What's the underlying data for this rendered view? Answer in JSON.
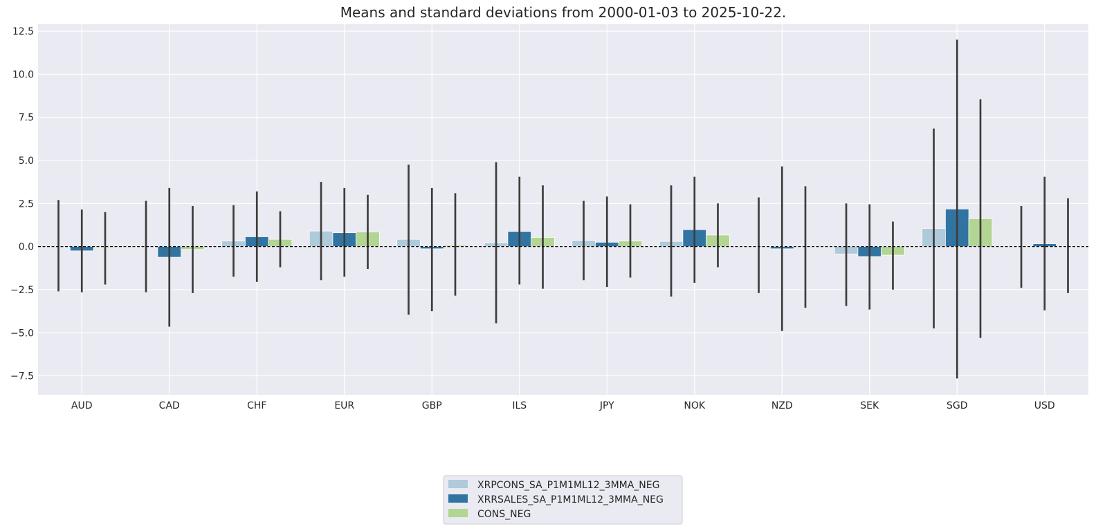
{
  "chart_data": {
    "type": "bar",
    "title": "Means and standard deviations from 2000-01-03 to 2025-10-22.",
    "xlabel": "",
    "ylabel": "",
    "ylim": [
      -8.6,
      12.9
    ],
    "yticks": [
      -7.5,
      -5.0,
      -2.5,
      0.0,
      2.5,
      5.0,
      7.5,
      10.0,
      12.5
    ],
    "ytick_labels": [
      "−7.5",
      "−5.0",
      "−2.5",
      "0.0",
      "2.5",
      "5.0",
      "7.5",
      "10.0",
      "12.5"
    ],
    "grid": true,
    "zero_line": "dashed",
    "legend_position": "bottom-center",
    "categories": [
      "AUD",
      "CAD",
      "CHF",
      "EUR",
      "GBP",
      "ILS",
      "JPY",
      "NOK",
      "NZD",
      "SEK",
      "SGD",
      "USD"
    ],
    "series": [
      {
        "name": "XRPCONS_SA_P1M1ML12_3MMA_NEG",
        "color": "#aecadb",
        "values": [
          0.02,
          0.0,
          0.32,
          0.9,
          0.42,
          0.22,
          0.36,
          0.3,
          0.05,
          -0.43,
          1.05,
          0.0
        ],
        "err_low": [
          -2.6,
          -2.65,
          -1.75,
          -1.95,
          -3.95,
          -4.45,
          -1.95,
          -2.9,
          -2.7,
          -3.45,
          -4.75,
          -2.4
        ],
        "err_high": [
          2.7,
          2.65,
          2.4,
          3.75,
          4.75,
          4.9,
          2.65,
          3.55,
          2.85,
          2.5,
          6.85,
          2.35
        ]
      },
      {
        "name": "XRRSALES_SA_P1M1ML12_3MMA_NEG",
        "color": "#3274a1",
        "values": [
          -0.25,
          -0.62,
          0.57,
          0.8,
          -0.13,
          0.88,
          0.25,
          0.98,
          -0.13,
          -0.58,
          2.18,
          0.16
        ],
        "err_low": [
          -2.65,
          -4.65,
          -2.05,
          -1.75,
          -3.75,
          -2.2,
          -2.35,
          -2.1,
          -4.9,
          -3.65,
          -7.65,
          -3.7
        ],
        "err_high": [
          2.15,
          3.4,
          3.2,
          3.4,
          3.4,
          4.05,
          2.9,
          4.05,
          4.65,
          2.45,
          12.0,
          4.05
        ]
      },
      {
        "name": "CONS_NEG",
        "color": "#b2d593",
        "values": [
          -0.05,
          -0.17,
          0.42,
          0.85,
          0.08,
          0.53,
          0.32,
          0.67,
          0.0,
          -0.5,
          1.62,
          0.0
        ],
        "err_low": [
          -2.2,
          -2.7,
          -1.2,
          -1.3,
          -2.85,
          -2.45,
          -1.8,
          -1.2,
          -3.55,
          -2.5,
          -5.3,
          -2.7
        ],
        "err_high": [
          2.0,
          2.35,
          2.05,
          3.0,
          3.1,
          3.55,
          2.45,
          2.5,
          3.5,
          1.45,
          8.55,
          2.8
        ]
      }
    ]
  }
}
